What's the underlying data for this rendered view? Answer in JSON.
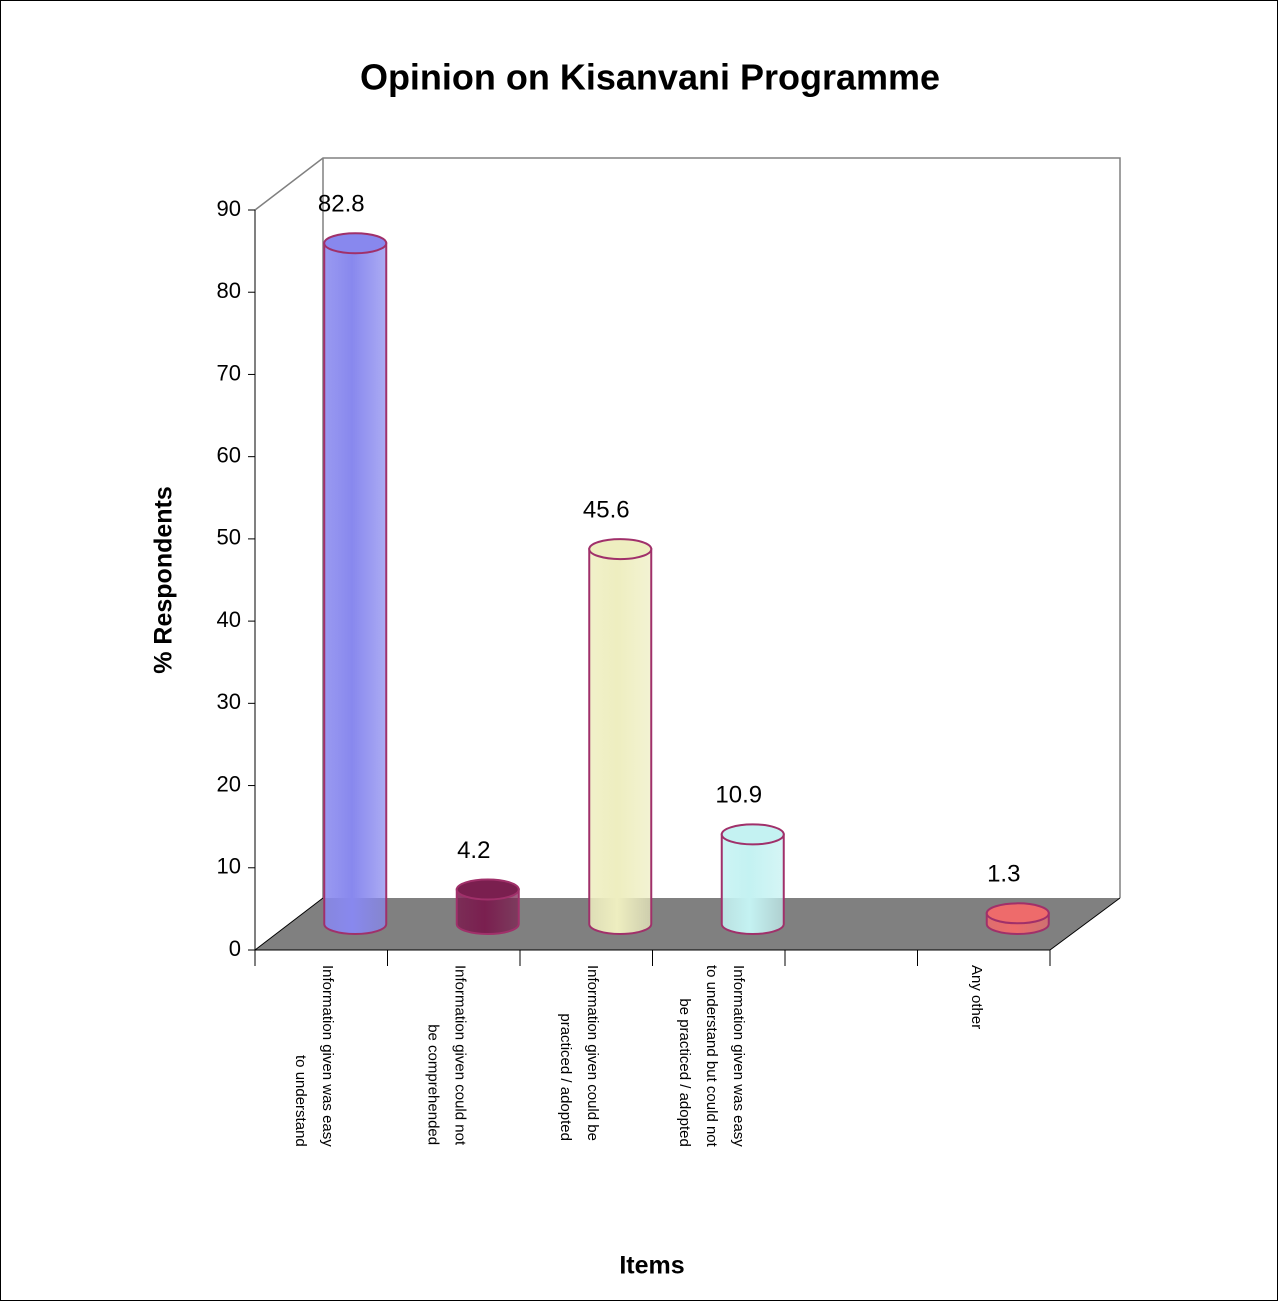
{
  "chart_data": {
    "type": "bar3d",
    "title": "Opinion on Kisanvani Programme",
    "x_label": "Items",
    "y_label": "% Respondents",
    "categories": [
      "Information given was easy to understand",
      "Information given could not be comprehended",
      "Information given could be practiced / adopted",
      "Information given was easy to understand but could not be practiced / adopted",
      null,
      "Any other"
    ],
    "values": [
      82.8,
      4.2,
      45.6,
      10.9,
      null,
      1.3
    ],
    "colors": [
      "#8888ee",
      "#7a1f4f",
      "#eeeec0",
      "#c4f2f2",
      null,
      "#ee6b6b"
    ],
    "ylim": [
      0,
      90
    ],
    "yticks": [
      0,
      10,
      20,
      30,
      40,
      50,
      60,
      70,
      80,
      90
    ],
    "grid": false
  }
}
